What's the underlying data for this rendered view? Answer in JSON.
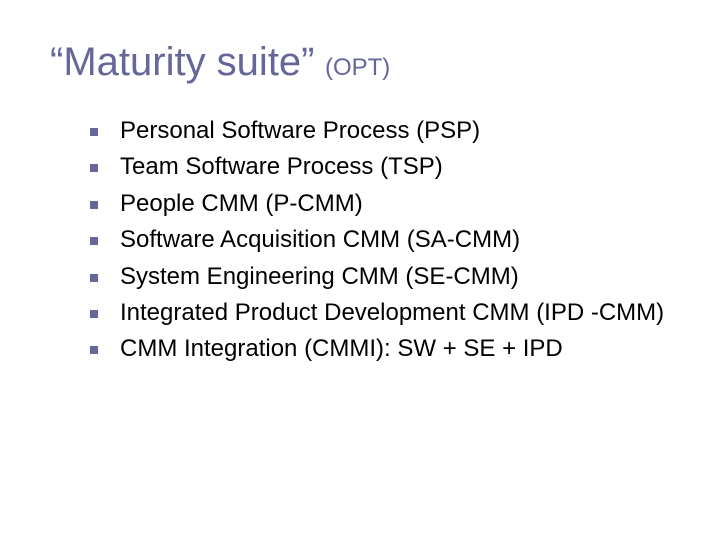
{
  "slide": {
    "title_main": "“Maturity suite”",
    "title_sub": "(OPT)",
    "title_color": "#666699",
    "title_fontsize_main": 40,
    "title_fontsize_sub": 24,
    "bullet_marker_color": "#666699",
    "bullet_marker_size": 8,
    "bullet_text_color": "#000000",
    "bullet_fontsize": 24,
    "background_color": "#ffffff",
    "bullets": [
      "Personal Software Process (PSP)",
      "Team Software Process (TSP)",
      "People CMM (P-CMM)",
      "Software Acquisition CMM (SA-CMM)",
      "System Engineering CMM (SE-CMM)",
      "Integrated Product Development CMM (IPD -CMM)",
      "CMM Integration (CMMI): SW + SE + IPD"
    ]
  }
}
